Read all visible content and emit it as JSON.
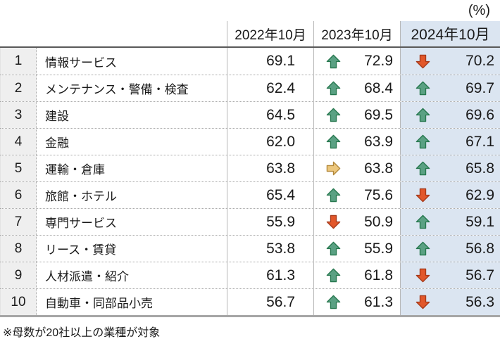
{
  "unit_label": "(%)",
  "footnote": "※母数が20社以上の業種が対象",
  "colors": {
    "highlight_column_bg": "#dbe5f1",
    "rank_column_bg": "#efefef",
    "up": {
      "fill": "#5aa183",
      "stroke": "#26774e"
    },
    "down": {
      "fill": "#e2572a",
      "stroke": "#a63a1a"
    },
    "flat": {
      "fill": "#ecc77d",
      "stroke": "#b3893c"
    }
  },
  "chart_data": {
    "type": "table",
    "unit": "(%)",
    "columns": [
      "2022年10月",
      "2023年10月",
      "2024年10月"
    ],
    "note": "※母数が20社以上の業種が対象",
    "rows": [
      {
        "rank": "1",
        "industry": "情報サービス",
        "v2022": "69.1",
        "v2023": "72.9",
        "t2023": "up",
        "v2024": "70.2",
        "t2024": "down"
      },
      {
        "rank": "2",
        "industry": "メンテナンス・警備・検査",
        "v2022": "62.4",
        "v2023": "68.4",
        "t2023": "up",
        "v2024": "69.7",
        "t2024": "up"
      },
      {
        "rank": "3",
        "industry": "建設",
        "v2022": "64.5",
        "v2023": "69.5",
        "t2023": "up",
        "v2024": "69.6",
        "t2024": "up"
      },
      {
        "rank": "4",
        "industry": "金融",
        "v2022": "62.0",
        "v2023": "63.9",
        "t2023": "up",
        "v2024": "67.1",
        "t2024": "up"
      },
      {
        "rank": "5",
        "industry": "運輸・倉庫",
        "v2022": "63.8",
        "v2023": "63.8",
        "t2023": "flat",
        "v2024": "65.8",
        "t2024": "up"
      },
      {
        "rank": "6",
        "industry": "旅館・ホテル",
        "v2022": "65.4",
        "v2023": "75.6",
        "t2023": "up",
        "v2024": "62.9",
        "t2024": "down"
      },
      {
        "rank": "7",
        "industry": "専門サービス",
        "v2022": "55.9",
        "v2023": "50.9",
        "t2023": "down",
        "v2024": "59.1",
        "t2024": "up"
      },
      {
        "rank": "8",
        "industry": "リース・賃貸",
        "v2022": "53.8",
        "v2023": "55.9",
        "t2023": "up",
        "v2024": "56.8",
        "t2024": "up"
      },
      {
        "rank": "9",
        "industry": "人材派遣・紹介",
        "v2022": "61.3",
        "v2023": "61.8",
        "t2023": "up",
        "v2024": "56.7",
        "t2024": "down"
      },
      {
        "rank": "10",
        "industry": "自動車・同部品小売",
        "v2022": "56.7",
        "v2023": "61.3",
        "t2023": "up",
        "v2024": "56.3",
        "t2024": "down"
      }
    ]
  }
}
